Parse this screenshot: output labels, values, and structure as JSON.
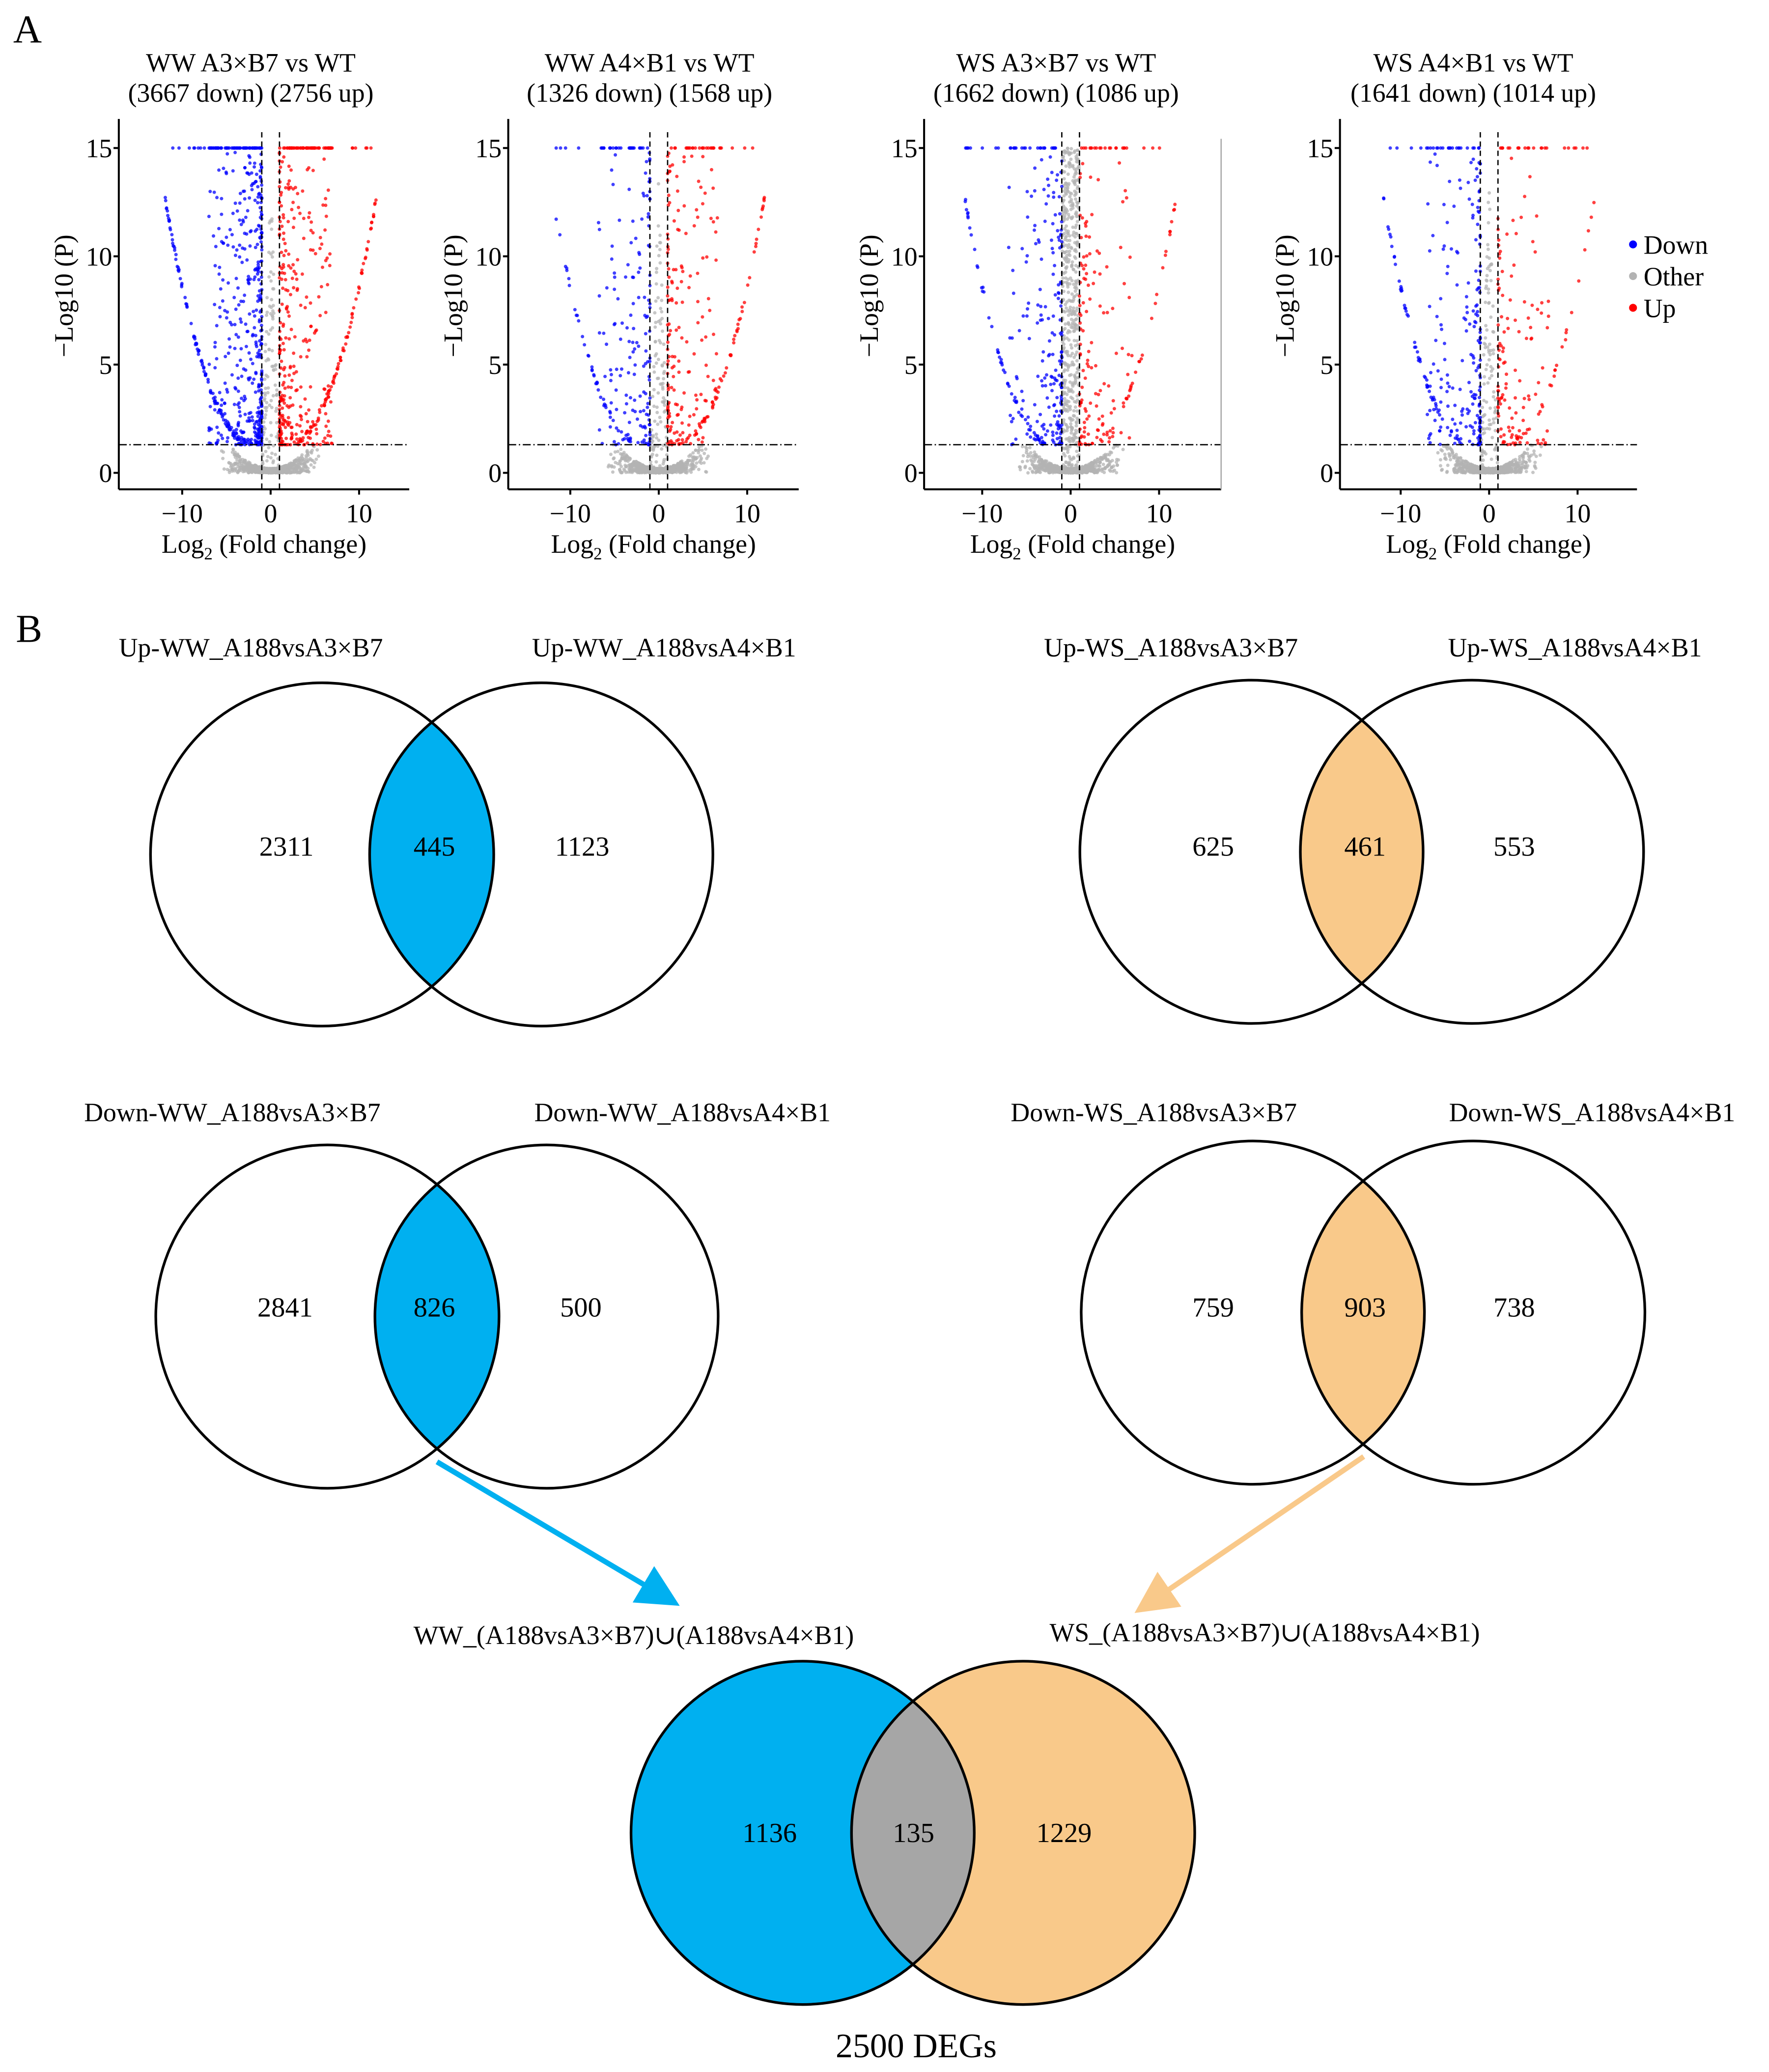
{
  "panel_labels": {
    "a": "A",
    "b": "B"
  },
  "colors": {
    "down": "#0000ff",
    "other": "#b3b3b3",
    "up": "#ff0000",
    "ww": "#00b0f0",
    "ws": "#f9c98a",
    "overlap": "#a6a6a6"
  },
  "chart_data": [
    {
      "type": "scatter",
      "title_line1": "WW   A3×B7 vs WT",
      "title_line2": "(3667 down)   (2756 up)",
      "down_count": 3667,
      "up_count": 2756,
      "xlabel": "Log2 (Fold change)",
      "ylabel": "−Log10 (P)",
      "xlim": [
        -16,
        16
      ],
      "ylim": [
        -0.7,
        16
      ],
      "xticks": [
        "−10",
        "0",
        "10"
      ],
      "yticks": [
        "0",
        "5",
        "10",
        "15"
      ],
      "fc_threshold": 1,
      "p_threshold": 1.3
    },
    {
      "type": "scatter",
      "title_line1": "WW   A4×B1 vs WT",
      "title_line2": "(1326 down)   (1568 up)",
      "down_count": 1326,
      "up_count": 1568,
      "xlabel": "Log2 (Fold change)",
      "ylabel": "−Log10 (P)",
      "xlim": [
        -16,
        16
      ],
      "ylim": [
        -0.7,
        16
      ],
      "xticks": [
        "−10",
        "0",
        "10"
      ],
      "yticks": [
        "0",
        "5",
        "10",
        "15"
      ],
      "fc_threshold": 1,
      "p_threshold": 1.3
    },
    {
      "type": "scatter",
      "title_line1": "WS   A3×B7 vs WT",
      "title_line2": "(1662 down)   (1086 up)",
      "down_count": 1662,
      "up_count": 1086,
      "xlabel": "Log2 (Fold change)",
      "ylabel": "−Log10 (P)",
      "xlim": [
        -16,
        16
      ],
      "ylim": [
        -0.7,
        16
      ],
      "xticks": [
        "−10",
        "0",
        "10"
      ],
      "yticks": [
        "0",
        "5",
        "10",
        "15"
      ],
      "fc_threshold": 1,
      "p_threshold": 1.3
    },
    {
      "type": "scatter",
      "title_line1": "WS   A4×B1 vs WT",
      "title_line2": "(1641 down)   (1014 up)",
      "down_count": 1641,
      "up_count": 1014,
      "xlabel": "Log2 (Fold change)",
      "ylabel": "−Log10 (P)",
      "xlim": [
        -16,
        16
      ],
      "ylim": [
        -0.7,
        16
      ],
      "xticks": [
        "−10",
        "0",
        "10"
      ],
      "yticks": [
        "0",
        "5",
        "10",
        "15"
      ],
      "fc_threshold": 1,
      "p_threshold": 1.3
    }
  ],
  "legend": {
    "placement": "right",
    "items": [
      "Down",
      "Other",
      "Up"
    ]
  },
  "venns": [
    {
      "set_a": "Up-WW_A188vsA3×B7",
      "set_b": "Up-WW_A188vsA4×B1",
      "only_a": "2311",
      "both": "445",
      "only_b": "1123",
      "fill": "ww"
    },
    {
      "set_a": "Up-WS_A188vsA3×B7",
      "set_b": "Up-WS_A188vsA4×B1",
      "only_a": "625",
      "both": "461",
      "only_b": "553",
      "fill": "ws"
    },
    {
      "set_a": "Down-WW_A188vsA3×B7",
      "set_b": "Down-WW_A188vsA4×B1",
      "only_a": "2841",
      "both": "826",
      "only_b": "500",
      "fill": "ww"
    },
    {
      "set_a": "Down-WS_A188vsA3×B7",
      "set_b": "Down-WS_A188vsA4×B1",
      "only_a": "759",
      "both": "903",
      "only_b": "738",
      "fill": "ws"
    }
  ],
  "final_venn": {
    "set_a": "WW_(A188vsA3×B7)∪(A188vsA4×B1)",
    "set_b": "WS_(A188vsA3×B7)∪(A188vsA4×B1)",
    "only_a": "1136",
    "both": "135",
    "only_b": "1229",
    "total": "2500 DEGs"
  }
}
